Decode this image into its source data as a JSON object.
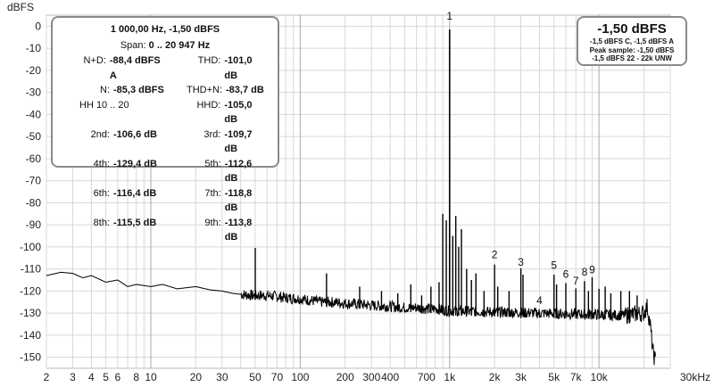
{
  "chart_data": {
    "type": "line",
    "title": "",
    "ylabel": "dBFS",
    "xlabel": "",
    "x_scale": "log",
    "xlim": [
      2,
      30000
    ],
    "ylim": [
      -155,
      5
    ],
    "grid": true,
    "y_ticks": [
      0,
      -10,
      -20,
      -30,
      -40,
      -50,
      -60,
      -70,
      -80,
      -90,
      -100,
      -110,
      -120,
      -130,
      -140,
      -150
    ],
    "y_tick_labels": [
      "0",
      "-10",
      "-20",
      "-30",
      "-40",
      "-50",
      "-60",
      "-70",
      "-80",
      "-90",
      "-100",
      "-110",
      "-120",
      "-130",
      "-140",
      "-150"
    ],
    "x_tick_labels": [
      {
        "x": 2,
        "label": "2"
      },
      {
        "x": 3,
        "label": "3"
      },
      {
        "x": 4,
        "label": "4"
      },
      {
        "x": 5,
        "label": "5"
      },
      {
        "x": 6,
        "label": "6"
      },
      {
        "x": 8,
        "label": "8"
      },
      {
        "x": 10,
        "label": "10"
      },
      {
        "x": 20,
        "label": "20"
      },
      {
        "x": 30,
        "label": "30"
      },
      {
        "x": 50,
        "label": "50"
      },
      {
        "x": 70,
        "label": "70"
      },
      {
        "x": 100,
        "label": "100"
      },
      {
        "x": 200,
        "label": "200"
      },
      {
        "x": 300,
        "label": "300"
      },
      {
        "x": 400,
        "label": "400"
      },
      {
        "x": 700,
        "label": "700"
      },
      {
        "x": 1000,
        "label": "1k"
      },
      {
        "x": 2000,
        "label": "2k"
      },
      {
        "x": 3000,
        "label": "3k"
      },
      {
        "x": 5000,
        "label": "5k"
      },
      {
        "x": 7000,
        "label": "7k"
      },
      {
        "x": 10000,
        "label": "10k"
      },
      {
        "x": 30000,
        "label": "30kHz"
      }
    ],
    "spectrum": [
      [
        2,
        -113
      ],
      [
        2.5,
        -111.5
      ],
      [
        3,
        -112
      ],
      [
        3.5,
        -114
      ],
      [
        4,
        -113
      ],
      [
        5,
        -116
      ],
      [
        6,
        -115
      ],
      [
        7,
        -118
      ],
      [
        8,
        -117
      ],
      [
        10,
        -118
      ],
      [
        12,
        -117
      ],
      [
        15,
        -119
      ],
      [
        20,
        -118
      ],
      [
        25,
        -119.5
      ],
      [
        30,
        -120
      ],
      [
        35,
        -121
      ],
      [
        40,
        -121.5
      ],
      [
        48,
        -122
      ],
      [
        50,
        -100.5
      ],
      [
        52,
        -122
      ],
      [
        60,
        -122
      ],
      [
        70,
        -122.5
      ],
      [
        80,
        -123
      ],
      [
        100,
        -123.5
      ],
      [
        110,
        -124
      ],
      [
        140,
        -125
      ],
      [
        150,
        -112
      ],
      [
        160,
        -125
      ],
      [
        200,
        -125.5
      ],
      [
        250,
        -126
      ],
      [
        300,
        -126.5
      ],
      [
        350,
        -127
      ],
      [
        400,
        -127
      ],
      [
        500,
        -127.5
      ],
      [
        600,
        -127.5
      ],
      [
        700,
        -128
      ],
      [
        800,
        -128
      ],
      [
        900,
        -128.5
      ],
      [
        980,
        -129
      ],
      [
        1000,
        -1.5
      ],
      [
        1020,
        -129
      ],
      [
        1200,
        -129
      ],
      [
        1500,
        -129.5
      ],
      [
        2000,
        -130
      ],
      [
        2500,
        -130
      ],
      [
        3000,
        -130
      ],
      [
        4000,
        -130
      ],
      [
        5000,
        -130
      ],
      [
        6000,
        -129.5
      ],
      [
        7000,
        -130
      ],
      [
        8000,
        -129.5
      ],
      [
        10000,
        -130
      ],
      [
        12000,
        -130
      ],
      [
        15000,
        -131
      ],
      [
        18000,
        -130
      ],
      [
        20000,
        -130
      ],
      [
        21000,
        -127
      ],
      [
        22000,
        -135
      ],
      [
        23000,
        -148
      ],
      [
        24000,
        -152
      ]
    ],
    "spurs": [
      [
        50,
        -100.5
      ],
      [
        150,
        -112
      ],
      [
        250,
        -118
      ],
      [
        350,
        -120
      ],
      [
        450,
        -121
      ],
      [
        550,
        -117
      ],
      [
        650,
        -122
      ],
      [
        750,
        -118
      ],
      [
        850,
        -116
      ],
      [
        900,
        -85
      ],
      [
        950,
        -88
      ],
      [
        1050,
        -95
      ],
      [
        1100,
        -86
      ],
      [
        1150,
        -100
      ],
      [
        1200,
        -92
      ],
      [
        1300,
        -110
      ],
      [
        1400,
        -115
      ],
      [
        1500,
        -112
      ],
      [
        1700,
        -120
      ],
      [
        2000,
        -108
      ],
      [
        2100,
        -118
      ],
      [
        2500,
        -120
      ],
      [
        3000,
        -109.7
      ],
      [
        3100,
        -112.6
      ],
      [
        4000,
        -129.4
      ],
      [
        5000,
        -112.6
      ],
      [
        5200,
        -117
      ],
      [
        6000,
        -116.4
      ],
      [
        7000,
        -118.8
      ],
      [
        8000,
        -115.5
      ],
      [
        8500,
        -120
      ],
      [
        9000,
        -113.8
      ],
      [
        10000,
        -119
      ],
      [
        11000,
        -118
      ],
      [
        12000,
        -121
      ],
      [
        14000,
        -120
      ],
      [
        16000,
        -120
      ],
      [
        18000,
        -122
      ]
    ],
    "harmonic_labels": [
      {
        "label": "1",
        "x": 1000,
        "y": 3
      },
      {
        "label": "2",
        "x": 2000,
        "y": -105
      },
      {
        "label": "3",
        "x": 3000,
        "y": -108.5
      },
      {
        "label": "4",
        "x": 4000,
        "y": -126
      },
      {
        "label": "5",
        "x": 5000,
        "y": -110
      },
      {
        "label": "6",
        "x": 6000,
        "y": -114
      },
      {
        "label": "7",
        "x": 7000,
        "y": -117
      },
      {
        "label": "8",
        "x": 8000,
        "y": -113
      },
      {
        "label": "9",
        "x": 9000,
        "y": -112
      }
    ],
    "line_color": "#000000",
    "grid_color": "#d8d8d8"
  },
  "info": {
    "header": "1 000,00 Hz, -1,50 dBFS",
    "span_label": "Span:",
    "span_value": "0 .. 20 947 Hz",
    "rows": [
      {
        "l_label": "N+D:",
        "l_value": "-88,4 dBFS A",
        "r_label": "THD:",
        "r_value": "-101,0 dB"
      },
      {
        "l_label": "N:",
        "l_value": "-85,3 dBFS",
        "r_label": "THD+N:",
        "r_value": "-83,7 dB"
      },
      {
        "l_label": "HH 10 .. 20",
        "l_value": "",
        "r_label": "HHD:",
        "r_value": "-105,0 dB"
      },
      {
        "l_label": "2nd:",
        "l_value": "-106,6 dB",
        "r_label": "3rd:",
        "r_value": "-109,7 dB"
      },
      {
        "l_label": "4th:",
        "l_value": "-129,4 dB",
        "r_label": "5th:",
        "r_value": "-112,6 dB"
      },
      {
        "l_label": "6th:",
        "l_value": "-116,4 dB",
        "r_label": "7th:",
        "r_value": "-118,8 dB"
      },
      {
        "l_label": "8th:",
        "l_value": "-115,5 dB",
        "r_label": "9th:",
        "r_value": "-113,8 dB"
      }
    ]
  },
  "level": {
    "big": "-1,50 dBFS",
    "line1": "-1,5 dBFS C, -1,5 dBFS A",
    "line2": "Peak sample: -1,50 dBFS",
    "line3": "-1,5 dBFS 22 - 22k UNW"
  }
}
